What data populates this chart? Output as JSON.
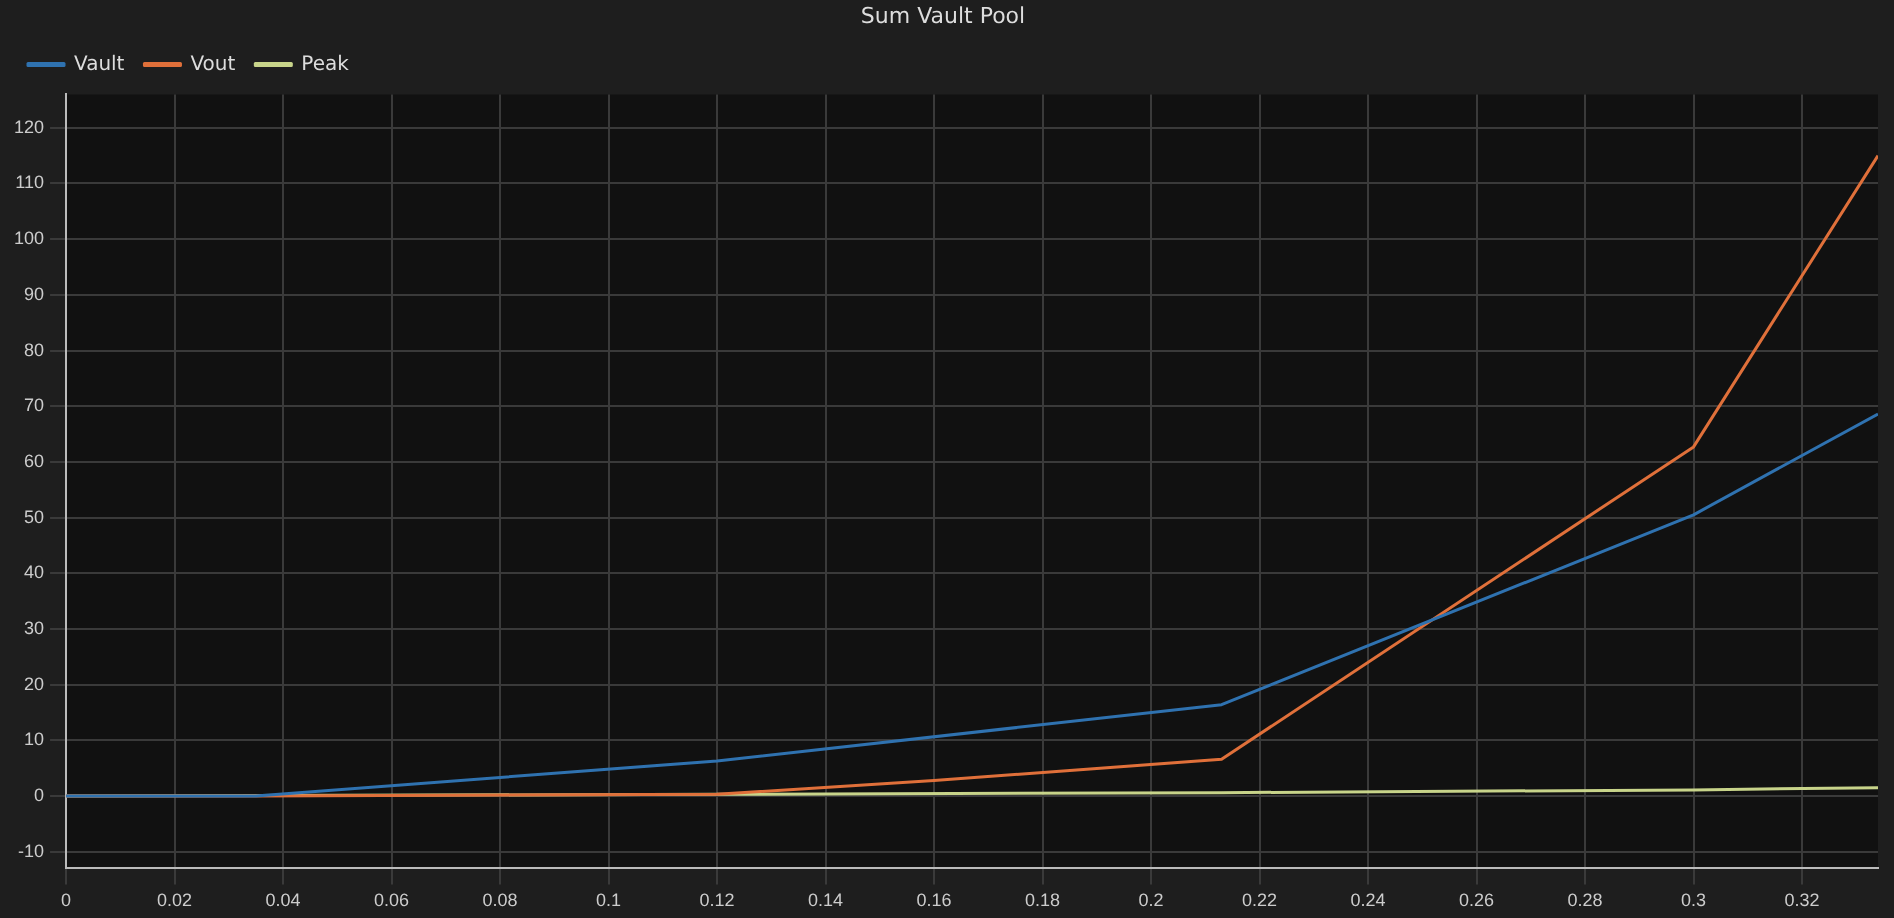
{
  "chart_data": {
    "type": "line",
    "title": "Sum Vault Pool",
    "legend": "top left",
    "grid": true,
    "marker": "none",
    "line_style": "solid",
    "xlim": [
      0,
      0.334
    ],
    "xticks": [
      0,
      0.02,
      0.04,
      0.06,
      0.08,
      0.1,
      0.12,
      0.14,
      0.16,
      0.18,
      0.2,
      0.22,
      0.24,
      0.26,
      0.28,
      0.3,
      0.32
    ],
    "ylim": [
      -13,
      126
    ],
    "yticks": [
      -10,
      0,
      10,
      20,
      30,
      40,
      50,
      60,
      70,
      80,
      90,
      100,
      110,
      120
    ],
    "series": [
      {
        "name": "Vault",
        "color": "#2f72b0",
        "x": [
          0,
          0.035,
          0.12,
          0.213,
          0.3,
          0.334
        ],
        "values": [
          0,
          0,
          6.3,
          16.4,
          50.5,
          68.6
        ]
      },
      {
        "name": "Vout",
        "color": "#e0703a",
        "x": [
          0,
          0.035,
          0.12,
          0.16,
          0.213,
          0.3,
          0.334
        ],
        "values": [
          0,
          0,
          0.3,
          2.8,
          6.6,
          62.7,
          115
        ]
      },
      {
        "name": "Peak",
        "color": "#c8d48a",
        "x": [
          0,
          0.12,
          0.213,
          0.3,
          0.334
        ],
        "values": [
          0,
          0.3,
          0.6,
          1.1,
          1.5
        ]
      }
    ]
  }
}
